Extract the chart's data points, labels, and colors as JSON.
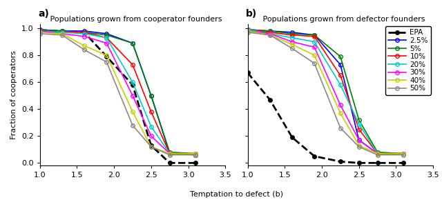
{
  "x_vals": [
    1.0,
    1.3,
    1.6,
    1.9,
    2.25,
    2.5,
    2.75,
    3.1
  ],
  "panel_a_title": "Populations grown from cooperator founders",
  "panel_b_title": "Populations grown from defector founders",
  "xlabel": "Temptation to defect (b)",
  "ylabel": "Fraction of cooperators",
  "xlim": [
    1.0,
    3.5
  ],
  "ylim": [
    -0.02,
    1.03
  ],
  "xticks": [
    1.0,
    1.5,
    2.0,
    2.5,
    3.0,
    3.5
  ],
  "yticks": [
    0.0,
    0.2,
    0.4,
    0.6,
    0.8,
    1.0
  ],
  "series": [
    {
      "label": "EPA",
      "color": "#000000",
      "linestyle": "--",
      "marker": "o",
      "markerfacecolor": "#000000",
      "markersize": 4,
      "linewidth": 2.0,
      "a": [
        0.98,
        0.98,
        0.97,
        0.79,
        0.58,
        0.13,
        0.0,
        0.0
      ],
      "b": [
        0.67,
        0.47,
        0.19,
        0.05,
        0.01,
        0.0,
        0.0,
        0.0
      ]
    },
    {
      "label": "2.5%",
      "color": "#0000ff",
      "linestyle": "-",
      "marker": "o",
      "markerfacecolor": "none",
      "markersize": 4,
      "linewidth": 1.2,
      "a": [
        0.99,
        0.98,
        0.98,
        0.96,
        0.89,
        0.5,
        0.07,
        0.06
      ],
      "b": [
        0.99,
        0.98,
        0.97,
        0.95,
        0.73,
        0.17,
        0.07,
        0.07
      ]
    },
    {
      "label": "5%",
      "color": "#008000",
      "linestyle": "-",
      "marker": "o",
      "markerfacecolor": "none",
      "markersize": 4,
      "linewidth": 1.2,
      "a": [
        0.99,
        0.98,
        0.97,
        0.95,
        0.89,
        0.5,
        0.08,
        0.07
      ],
      "b": [
        0.99,
        0.98,
        0.96,
        0.95,
        0.79,
        0.32,
        0.08,
        0.07
      ]
    },
    {
      "label": "10%",
      "color": "#ff0000",
      "linestyle": "-",
      "marker": "o",
      "markerfacecolor": "none",
      "markersize": 4,
      "linewidth": 1.2,
      "a": [
        0.98,
        0.97,
        0.97,
        0.93,
        0.73,
        0.38,
        0.07,
        0.07
      ],
      "b": [
        0.99,
        0.97,
        0.95,
        0.94,
        0.65,
        0.25,
        0.07,
        0.07
      ]
    },
    {
      "label": "20%",
      "color": "#00cccc",
      "linestyle": "-",
      "marker": "o",
      "markerfacecolor": "none",
      "markersize": 4,
      "linewidth": 1.2,
      "a": [
        0.98,
        0.97,
        0.96,
        0.93,
        0.6,
        0.27,
        0.07,
        0.07
      ],
      "b": [
        0.99,
        0.96,
        0.93,
        0.9,
        0.58,
        0.29,
        0.07,
        0.07
      ]
    },
    {
      "label": "30%",
      "color": "#ff00ff",
      "linestyle": "-",
      "marker": "o",
      "markerfacecolor": "none",
      "markersize": 4,
      "linewidth": 1.2,
      "a": [
        0.98,
        0.96,
        0.94,
        0.89,
        0.5,
        0.2,
        0.07,
        0.06
      ],
      "b": [
        0.98,
        0.96,
        0.9,
        0.86,
        0.43,
        0.17,
        0.07,
        0.07
      ]
    },
    {
      "label": "40%",
      "color": "#cccc00",
      "linestyle": "-",
      "marker": "o",
      "markerfacecolor": "none",
      "markersize": 4,
      "linewidth": 1.2,
      "a": [
        0.97,
        0.96,
        0.87,
        0.8,
        0.38,
        0.12,
        0.07,
        0.07
      ],
      "b": [
        0.98,
        0.95,
        0.88,
        0.8,
        0.37,
        0.13,
        0.07,
        0.07
      ]
    },
    {
      "label": "50%",
      "color": "#888888",
      "linestyle": "-",
      "marker": "o",
      "markerfacecolor": "none",
      "markersize": 4,
      "linewidth": 1.2,
      "a": [
        0.96,
        0.95,
        0.84,
        0.75,
        0.28,
        0.12,
        0.06,
        0.06
      ],
      "b": [
        0.97,
        0.95,
        0.85,
        0.74,
        0.26,
        0.12,
        0.06,
        0.06
      ]
    }
  ],
  "background_color": "#ffffff",
  "title_fontsize": 8,
  "label_fontsize": 8,
  "tick_fontsize": 8,
  "legend_fontsize": 7.5,
  "panel_label_fontsize": 10
}
